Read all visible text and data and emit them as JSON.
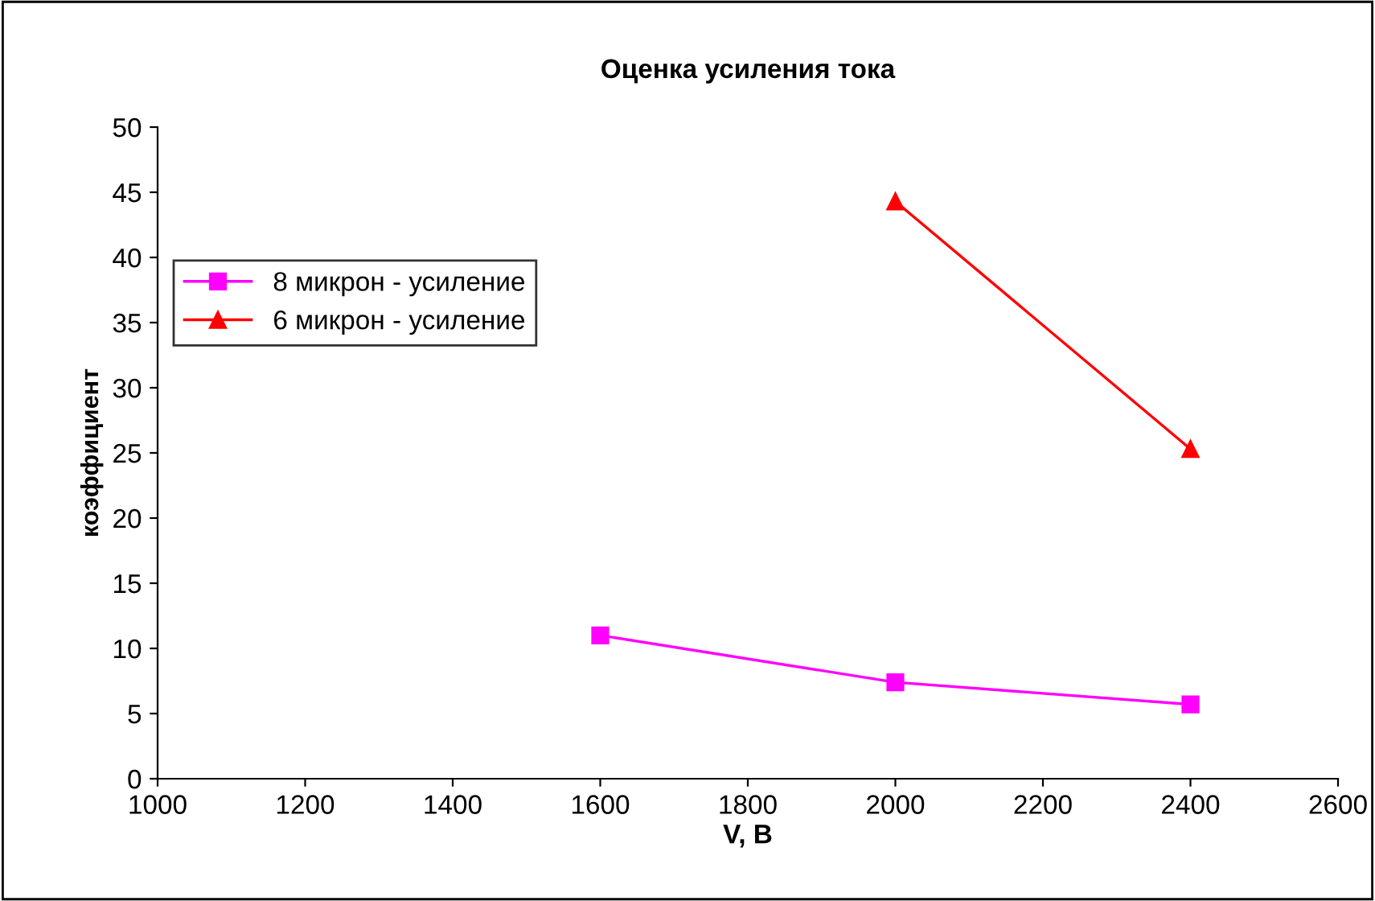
{
  "chart_data": {
    "type": "line",
    "title": "Оценка усиления тока",
    "xlabel": "V, В",
    "ylabel": "коэффициент",
    "series": [
      {
        "name": "8 микрон - усиление",
        "color": "#ff00ff",
        "marker": "square",
        "x": [
          1600,
          2000,
          2400
        ],
        "values": [
          11.0,
          7.4,
          5.7
        ]
      },
      {
        "name": "6 микрон - усиление",
        "color": "#ff0000",
        "marker": "triangle",
        "x": [
          2000,
          2400
        ],
        "values": [
          44.3,
          25.3
        ]
      }
    ],
    "xlim": [
      1000,
      2600
    ],
    "xticks": [
      1000,
      1200,
      1400,
      1600,
      1800,
      2000,
      2200,
      2400,
      2600
    ],
    "ylim": [
      0,
      50
    ],
    "yticks": [
      0,
      5,
      10,
      15,
      20,
      25,
      30,
      35,
      40,
      45,
      50
    ],
    "grid": false,
    "legend": "left",
    "line_style": "solid"
  }
}
